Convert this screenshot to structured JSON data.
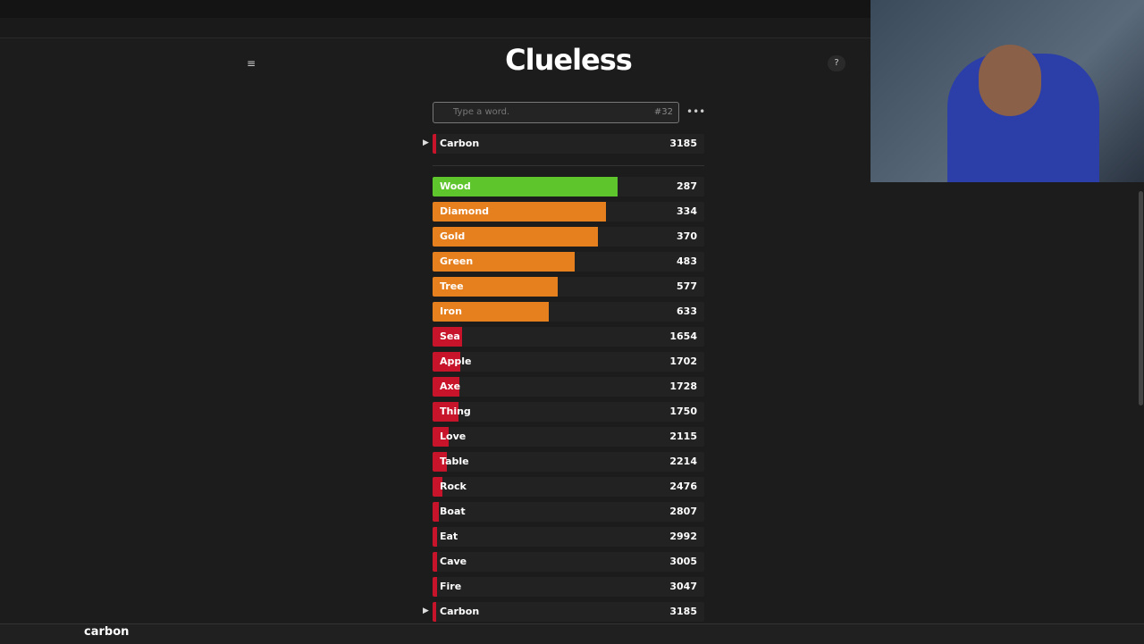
{
  "header": {
    "title": "Clueless"
  },
  "search": {
    "placeholder": "Type a word.",
    "guess_count": "#32"
  },
  "last_guess": {
    "word": "Carbon",
    "rank": 3185
  },
  "guesses": [
    {
      "word": "Wood",
      "rank": 287
    },
    {
      "word": "Diamond",
      "rank": 334
    },
    {
      "word": "Gold",
      "rank": 370
    },
    {
      "word": "Green",
      "rank": 483
    },
    {
      "word": "Tree",
      "rank": 577
    },
    {
      "word": "Iron",
      "rank": 633
    },
    {
      "word": "Sea",
      "rank": 1654
    },
    {
      "word": "Apple",
      "rank": 1702
    },
    {
      "word": "Axe",
      "rank": 1728
    },
    {
      "word": "Thing",
      "rank": 1750
    },
    {
      "word": "Love",
      "rank": 2115
    },
    {
      "word": "Table",
      "rank": 2214
    },
    {
      "word": "Rock",
      "rank": 2476
    },
    {
      "word": "Boat",
      "rank": 2807
    },
    {
      "word": "Eat",
      "rank": 2992
    },
    {
      "word": "Cave",
      "rank": 3005
    },
    {
      "word": "Fire",
      "rank": 3047
    },
    {
      "word": "Carbon",
      "rank": 3185
    }
  ],
  "taskbar": {
    "overlay_text": "carbon"
  }
}
